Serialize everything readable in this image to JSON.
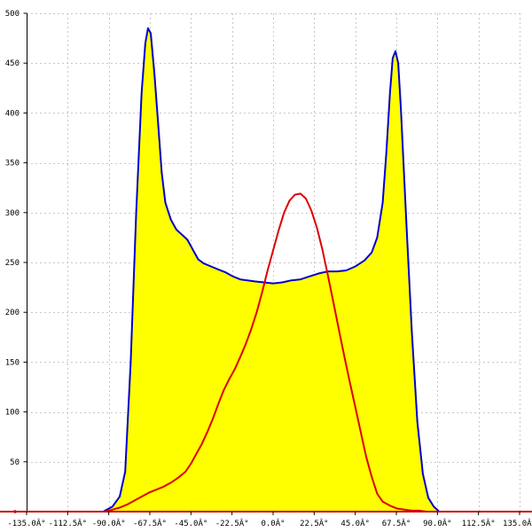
{
  "chart_data": {
    "type": "area",
    "title": "",
    "xlabel": "",
    "ylabel": "",
    "xlim": [
      -135,
      135
    ],
    "ylim": [
      0,
      500
    ],
    "grid": true,
    "legend": "none",
    "x_ticks": [
      -135,
      -112.5,
      -90,
      -67.5,
      -45,
      -22.5,
      0,
      22.5,
      45,
      67.5,
      90,
      112.5,
      135
    ],
    "x_tick_labels": [
      "-135.0Â°",
      "-112.5Â°",
      "-90.0Â°",
      "-67.5Â°",
      "-45.0Â°",
      "-22.5Â°",
      "0.0Â°",
      "22.5Â°",
      "45.0Â°",
      "67.5Â°",
      "90.0Â°",
      "112.5Â°",
      "135.0Â°"
    ],
    "y_ticks": [
      0,
      50,
      100,
      150,
      200,
      250,
      300,
      350,
      400,
      450,
      500
    ],
    "y_tick_labels": [
      "0",
      "50",
      "100",
      "150",
      "200",
      "250",
      "300",
      "350",
      "400",
      "450",
      "500"
    ],
    "series": [
      {
        "fill": "#ffff00",
        "color": "#0000cc",
        "filled": true,
        "points": [
          [
            -135,
            0
          ],
          [
            -93,
            0
          ],
          [
            -88,
            5
          ],
          [
            -84,
            15
          ],
          [
            -81,
            40
          ],
          [
            -78,
            150
          ],
          [
            -75,
            300
          ],
          [
            -72,
            420
          ],
          [
            -70,
            470
          ],
          [
            -68.5,
            485
          ],
          [
            -67,
            480
          ],
          [
            -65,
            440
          ],
          [
            -63,
            390
          ],
          [
            -61,
            340
          ],
          [
            -59,
            310
          ],
          [
            -56,
            293
          ],
          [
            -53,
            283
          ],
          [
            -50,
            278
          ],
          [
            -47,
            273
          ],
          [
            -44,
            263
          ],
          [
            -41,
            253
          ],
          [
            -38,
            249
          ],
          [
            -34,
            246
          ],
          [
            -30,
            243
          ],
          [
            -26,
            240
          ],
          [
            -22,
            236
          ],
          [
            -18,
            233
          ],
          [
            -14,
            232
          ],
          [
            -10,
            231
          ],
          [
            -5,
            230
          ],
          [
            0,
            229
          ],
          [
            5,
            230
          ],
          [
            10,
            232
          ],
          [
            15,
            233
          ],
          [
            20,
            236
          ],
          [
            25,
            239
          ],
          [
            30,
            241
          ],
          [
            35,
            241
          ],
          [
            40,
            242
          ],
          [
            45,
            246
          ],
          [
            50,
            252
          ],
          [
            54,
            260
          ],
          [
            57,
            275
          ],
          [
            60,
            310
          ],
          [
            62,
            360
          ],
          [
            64,
            420
          ],
          [
            65.5,
            455
          ],
          [
            67,
            462
          ],
          [
            68.5,
            450
          ],
          [
            70,
            405
          ],
          [
            73,
            290
          ],
          [
            76,
            180
          ],
          [
            79,
            90
          ],
          [
            82,
            38
          ],
          [
            85,
            14
          ],
          [
            88,
            5
          ],
          [
            91,
            0
          ],
          [
            135,
            0
          ]
        ]
      },
      {
        "color": "#dd0000",
        "filled": false,
        "points": [
          [
            -135,
            0
          ],
          [
            -92,
            0
          ],
          [
            -88,
            2
          ],
          [
            -84,
            4
          ],
          [
            -80,
            7
          ],
          [
            -76,
            11
          ],
          [
            -72,
            15
          ],
          [
            -68,
            19
          ],
          [
            -64,
            22
          ],
          [
            -60,
            25
          ],
          [
            -56,
            29
          ],
          [
            -52,
            34
          ],
          [
            -48,
            40
          ],
          [
            -45,
            48
          ],
          [
            -42,
            58
          ],
          [
            -39,
            68
          ],
          [
            -36,
            80
          ],
          [
            -33,
            93
          ],
          [
            -30,
            108
          ],
          [
            -27,
            122
          ],
          [
            -24,
            133
          ],
          [
            -21,
            143
          ],
          [
            -18,
            155
          ],
          [
            -15,
            168
          ],
          [
            -12,
            183
          ],
          [
            -9,
            200
          ],
          [
            -6,
            220
          ],
          [
            -3,
            242
          ],
          [
            0,
            262
          ],
          [
            3,
            282
          ],
          [
            6,
            300
          ],
          [
            9,
            312
          ],
          [
            12,
            318
          ],
          [
            15,
            319
          ],
          [
            18,
            314
          ],
          [
            21,
            302
          ],
          [
            24,
            285
          ],
          [
            27,
            263
          ],
          [
            30,
            237
          ],
          [
            33,
            210
          ],
          [
            36,
            183
          ],
          [
            39,
            156
          ],
          [
            42,
            130
          ],
          [
            45,
            105
          ],
          [
            48,
            80
          ],
          [
            51,
            55
          ],
          [
            54,
            35
          ],
          [
            57,
            18
          ],
          [
            60,
            10
          ],
          [
            64,
            6
          ],
          [
            68,
            3
          ],
          [
            72,
            2
          ],
          [
            76,
            1
          ],
          [
            80,
            1
          ],
          [
            84,
            0
          ],
          [
            88,
            0
          ],
          [
            92,
            0
          ],
          [
            135,
            0
          ]
        ]
      }
    ]
  },
  "colors": {
    "axis": "#000000",
    "baseline": "#cc0000"
  }
}
